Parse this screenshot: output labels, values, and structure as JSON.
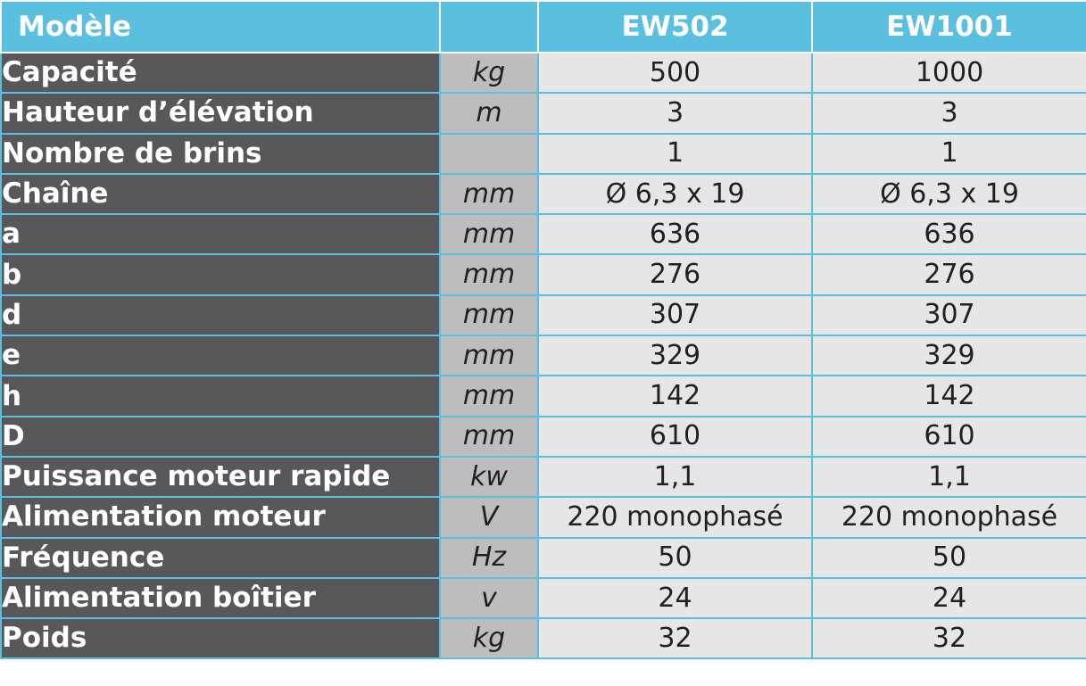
{
  "table": {
    "header": {
      "label": "Modèle",
      "unit": "",
      "models": [
        "EW502",
        "EW1001"
      ]
    },
    "rows": [
      {
        "label": "Capacité",
        "unit": "kg",
        "values": [
          "500",
          "1000"
        ]
      },
      {
        "label": "Hauteur d’élévation",
        "unit": "m",
        "values": [
          "3",
          "3"
        ]
      },
      {
        "label": "Nombre de brins",
        "unit": "",
        "values": [
          "1",
          "1"
        ]
      },
      {
        "label": "Chaîne",
        "unit": "mm",
        "values": [
          "Ø 6,3 x 19",
          "Ø 6,3 x 19"
        ]
      },
      {
        "label": "a",
        "unit": "mm",
        "values": [
          "636",
          "636"
        ]
      },
      {
        "label": "b",
        "unit": "mm",
        "values": [
          "276",
          "276"
        ]
      },
      {
        "label": "d",
        "unit": "mm",
        "values": [
          "307",
          "307"
        ]
      },
      {
        "label": "e",
        "unit": "mm",
        "values": [
          "329",
          "329"
        ]
      },
      {
        "label": "h",
        "unit": "mm",
        "values": [
          "142",
          "142"
        ]
      },
      {
        "label": "D",
        "unit": "mm",
        "values": [
          "610",
          "610"
        ]
      },
      {
        "label": "Puissance moteur rapide",
        "unit": "kw",
        "values": [
          "1,1",
          "1,1"
        ]
      },
      {
        "label": "Alimentation moteur",
        "unit": "V",
        "values": [
          "220 monophasé",
          "220 monophasé"
        ]
      },
      {
        "label": "Fréquence",
        "unit": "Hz",
        "values": [
          "50",
          "50"
        ]
      },
      {
        "label": "Alimentation boîtier",
        "unit": "v",
        "values": [
          "24",
          "24"
        ]
      },
      {
        "label": "Poids",
        "unit": "kg",
        "values": [
          "32",
          "32"
        ]
      }
    ]
  },
  "colors": {
    "header_bg": "#5bbfe0",
    "label_bg": "#58585a",
    "unit_bg": "#bdbdbf",
    "value_bg": "#e6e6e6"
  }
}
